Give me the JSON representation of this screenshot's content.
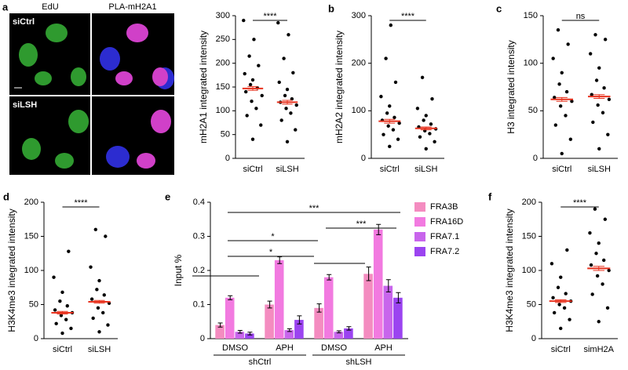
{
  "images": {
    "panel": "a",
    "columns": [
      "EdU",
      "PLA-mH2A1"
    ],
    "rows": [
      "siCtrl",
      "siLSH"
    ]
  },
  "chart_data": [
    {
      "type": "strip",
      "ylabel": "mH2A1 integrated intensity",
      "categories": [
        "siCtrl",
        "siLSH"
      ],
      "significance": "****",
      "ylim": [
        0,
        300
      ],
      "yticks": [
        0,
        50,
        100,
        150,
        200,
        250,
        300
      ],
      "points": [
        [
          40,
          70,
          90,
          105,
          120,
          132,
          140,
          148,
          155,
          165,
          178,
          195,
          215,
          250,
          290
        ],
        [
          35,
          60,
          80,
          95,
          105,
          112,
          118,
          125,
          132,
          145,
          160,
          180,
          210,
          260,
          285
        ]
      ],
      "means": [
        147,
        118
      ],
      "errors": [
        4,
        4
      ]
    },
    {
      "type": "strip",
      "panel": "b",
      "ylabel": "mH2A2 integrated intensity",
      "categories": [
        "siCtrl",
        "siLSH"
      ],
      "significance": "****",
      "ylim": [
        0,
        300
      ],
      "yticks": [
        0,
        100,
        200,
        300
      ],
      "points": [
        [
          25,
          40,
          50,
          60,
          68,
          74,
          80,
          86,
          95,
          110,
          130,
          160,
          210,
          280
        ],
        [
          20,
          35,
          45,
          52,
          58,
          62,
          66,
          72,
          80,
          90,
          105,
          125,
          170
        ]
      ],
      "means": [
        78,
        63
      ],
      "errors": [
        4,
        3
      ]
    },
    {
      "type": "strip",
      "panel": "c",
      "ylabel": "H3 integrated intensity",
      "categories": [
        "siCtrl",
        "siLSH"
      ],
      "significance": "ns",
      "ylim": [
        0,
        150
      ],
      "yticks": [
        0,
        50,
        100,
        150
      ],
      "points": [
        [
          5,
          20,
          35,
          45,
          55,
          60,
          64,
          70,
          78,
          90,
          105,
          120,
          135
        ],
        [
          10,
          25,
          38,
          48,
          56,
          62,
          67,
          74,
          82,
          95,
          110,
          125,
          130
        ]
      ],
      "means": [
        62,
        65
      ],
      "errors": [
        2,
        2
      ]
    },
    {
      "type": "strip",
      "panel": "d",
      "ylabel": "H3K4me3 integrated intensity",
      "categories": [
        "siCtrl",
        "siLSH"
      ],
      "significance": "****",
      "ylim": [
        0,
        200
      ],
      "yticks": [
        0,
        50,
        100,
        150,
        200
      ],
      "points": [
        [
          8,
          15,
          22,
          28,
          34,
          38,
          42,
          48,
          55,
          68,
          90,
          128
        ],
        [
          10,
          20,
          30,
          38,
          45,
          52,
          58,
          64,
          72,
          85,
          105,
          150,
          160
        ]
      ],
      "means": [
        38,
        54
      ],
      "errors": [
        2,
        2
      ]
    },
    {
      "type": "bar",
      "panel": "e",
      "ylabel": "Input %",
      "categories": [
        "DMSO",
        "APH",
        "DMSO",
        "APH"
      ],
      "groups": [
        "shCtrl",
        "shLSH"
      ],
      "ylim": [
        0,
        0.4
      ],
      "yticks": [
        0,
        0.1,
        0.2,
        0.3,
        0.4
      ],
      "annotations": [
        "*",
        "*",
        "***",
        "***"
      ],
      "series": [
        {
          "name": "FRA3B",
          "color": "#f48cc0",
          "values": [
            0.04,
            0.1,
            0.09,
            0.19
          ],
          "errors": [
            0.006,
            0.01,
            0.012,
            0.02
          ]
        },
        {
          "name": "FRA16D",
          "color": "#f27ae0",
          "values": [
            0.12,
            0.23,
            0.18,
            0.32
          ],
          "errors": [
            0.006,
            0.01,
            0.008,
            0.015
          ]
        },
        {
          "name": "FRA7.1",
          "color": "#c865ec",
          "values": [
            0.02,
            0.025,
            0.02,
            0.155
          ],
          "errors": [
            0.004,
            0.004,
            0.003,
            0.018
          ]
        },
        {
          "name": "FRA7.2",
          "color": "#9b44f0",
          "values": [
            0.015,
            0.055,
            0.03,
            0.12
          ],
          "errors": [
            0.004,
            0.012,
            0.005,
            0.015
          ]
        }
      ]
    },
    {
      "type": "strip",
      "panel": "f",
      "ylabel": "H3K4me3 integrated intensity",
      "categories": [
        "siCtrl",
        "simH2A"
      ],
      "significance": "****",
      "ylim": [
        0,
        200
      ],
      "yticks": [
        0,
        50,
        100,
        150,
        200
      ],
      "points": [
        [
          15,
          28,
          38,
          45,
          50,
          55,
          60,
          66,
          75,
          90,
          110,
          130
        ],
        [
          25,
          45,
          65,
          80,
          92,
          100,
          108,
          115,
          125,
          140,
          155,
          175,
          190
        ]
      ],
      "means": [
        55,
        103
      ],
      "errors": [
        2,
        3
      ]
    }
  ]
}
